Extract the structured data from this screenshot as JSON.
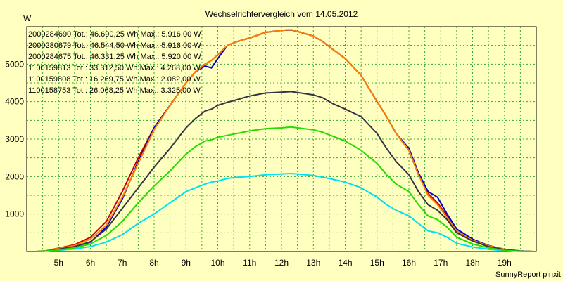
{
  "chart_data": {
    "type": "line",
    "title": "Wechselrichtervergleich vom 14.05.2012",
    "ylabel": "W",
    "xlabel": "",
    "footer": "SunnyReport pinxit",
    "xlim": [
      4.0,
      20.0
    ],
    "ylim": [
      0,
      6000
    ],
    "grid": true,
    "legend_position": "top-left",
    "x_ticks": [
      5,
      6,
      7,
      8,
      9,
      10,
      11,
      12,
      13,
      14,
      15,
      16,
      17,
      18,
      19
    ],
    "x_tick_labels": [
      "5h",
      "6h",
      "7h",
      "8h",
      "9h",
      "10h",
      "11h",
      "12h",
      "13h",
      "14h",
      "15h",
      "16h",
      "17h",
      "18h",
      "19h"
    ],
    "y_ticks": [
      1000,
      2000,
      3000,
      4000,
      5000
    ],
    "y_tick_labels": [
      "1000",
      "2000",
      "3000",
      "4000",
      "5000"
    ],
    "x": [
      4.3,
      4.6,
      5.0,
      5.5,
      6.0,
      6.5,
      7.0,
      7.5,
      8.0,
      8.5,
      9.0,
      9.3,
      9.6,
      9.8,
      10.0,
      10.3,
      10.6,
      11.0,
      11.5,
      12.0,
      12.3,
      12.6,
      13.0,
      13.3,
      13.6,
      14.0,
      14.5,
      15.0,
      15.3,
      15.6,
      16.0,
      16.3,
      16.6,
      16.9,
      17.2,
      17.5,
      18.0,
      18.5,
      19.0,
      19.5,
      19.9
    ],
    "series": [
      {
        "name": "2000284690",
        "legend": "2000284690 Tot.: 46.690,25 Wh Max.: 5.916,00 W",
        "color": "#cc0000",
        "values": [
          0,
          20,
          90,
          180,
          380,
          800,
          1600,
          2500,
          3300,
          3900,
          4500,
          4800,
          5000,
          5100,
          5250,
          5500,
          5600,
          5700,
          5850,
          5900,
          5916,
          5850,
          5750,
          5600,
          5400,
          5150,
          4700,
          4000,
          3600,
          3150,
          2700,
          2050,
          1550,
          1300,
          950,
          550,
          300,
          150,
          60,
          15,
          0
        ]
      },
      {
        "name": "2000280879",
        "legend": "2000280879 Tot.: 46.544,50 Wh Max.: 5.916,00 W",
        "color": "#0000cc",
        "values": [
          0,
          15,
          60,
          130,
          250,
          650,
          1400,
          2400,
          3300,
          3900,
          4500,
          4800,
          4950,
          4900,
          5150,
          5500,
          5600,
          5700,
          5850,
          5900,
          5916,
          5850,
          5750,
          5600,
          5400,
          5150,
          4700,
          4000,
          3600,
          3150,
          2750,
          2100,
          1600,
          1450,
          1000,
          600,
          330,
          160,
          60,
          15,
          0
        ]
      },
      {
        "name": "2000284675",
        "legend": "2000284675 Tot.: 46.331,25 Wh Max.: 5.920,00 W",
        "color": "#ff8000",
        "values": [
          0,
          20,
          80,
          160,
          330,
          700,
          1450,
          2350,
          3250,
          3900,
          4500,
          4800,
          5000,
          5100,
          5250,
          5500,
          5600,
          5700,
          5850,
          5900,
          5920,
          5850,
          5750,
          5600,
          5400,
          5150,
          4700,
          4000,
          3600,
          3150,
          2700,
          2050,
          1500,
          1250,
          900,
          550,
          300,
          150,
          60,
          15,
          0
        ]
      },
      {
        "name": "1100159813",
        "legend": "1100159813 Tot.: 33.312,50 Wh Max.: 4.268,00 W",
        "color": "#333344",
        "values": [
          0,
          10,
          60,
          130,
          260,
          600,
          1150,
          1700,
          2250,
          2750,
          3300,
          3550,
          3750,
          3800,
          3900,
          3980,
          4050,
          4150,
          4230,
          4250,
          4268,
          4230,
          4180,
          4100,
          3950,
          3800,
          3600,
          3150,
          2750,
          2400,
          2050,
          1600,
          1250,
          1100,
          850,
          500,
          280,
          130,
          50,
          10,
          0
        ]
      },
      {
        "name": "1100159808",
        "legend": "1100159808 Tot.: 16.269,75 Wh Max.: 2.082,00 W",
        "color": "#00e0f0",
        "values": [
          0,
          10,
          30,
          70,
          130,
          250,
          450,
          750,
          1000,
          1300,
          1600,
          1700,
          1800,
          1850,
          1880,
          1950,
          1980,
          2000,
          2050,
          2070,
          2082,
          2060,
          2030,
          1980,
          1930,
          1850,
          1700,
          1450,
          1250,
          1100,
          950,
          750,
          550,
          500,
          380,
          220,
          120,
          60,
          20,
          5,
          0
        ]
      },
      {
        "name": "1100158753",
        "legend": "1100158753 Tot.: 26.068,25 Wh Max.: 3.325,00 W",
        "color": "#22dd00",
        "values": [
          0,
          10,
          40,
          100,
          200,
          430,
          800,
          1300,
          1750,
          2150,
          2600,
          2800,
          2950,
          2980,
          3050,
          3100,
          3150,
          3220,
          3280,
          3300,
          3325,
          3290,
          3250,
          3180,
          3080,
          2950,
          2700,
          2350,
          2050,
          1800,
          1600,
          1250,
          950,
          850,
          650,
          380,
          200,
          100,
          30,
          5,
          0
        ]
      }
    ]
  }
}
